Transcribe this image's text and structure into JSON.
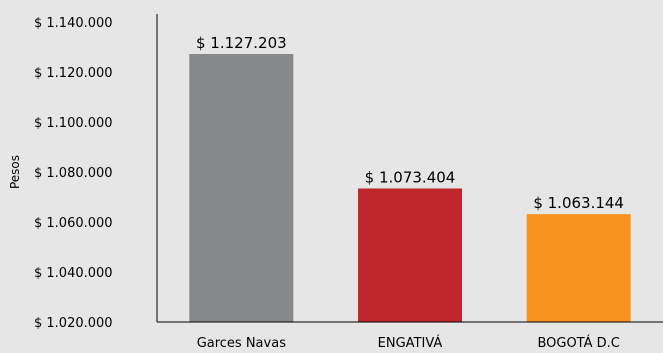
{
  "chart_data": {
    "type": "bar",
    "title": "",
    "xlabel": "",
    "ylabel": "Pesos",
    "ylim": [
      1020000,
      1140000
    ],
    "ytick_step": 20000,
    "ytick_labels": [
      "$ 1.020.000",
      "$ 1.040.000",
      "$ 1.060.000",
      "$ 1.080.000",
      "$ 1.100.000",
      "$ 1.120.000",
      "$ 1.140.000"
    ],
    "categories": [
      "Garces Navas",
      "ENGATIVÁ",
      "BOGOTÁ D.C"
    ],
    "values": [
      1127203,
      1073404,
      1063144
    ],
    "data_labels": [
      "$ 1.127.203",
      "$ 1.073.404",
      "$ 1.063.144"
    ],
    "colors": [
      "#87888a",
      "#c0272d",
      "#f7931e"
    ],
    "grid": false,
    "legend": "none",
    "background_color": "#e6e6e6",
    "axis_color": "#000000"
  }
}
